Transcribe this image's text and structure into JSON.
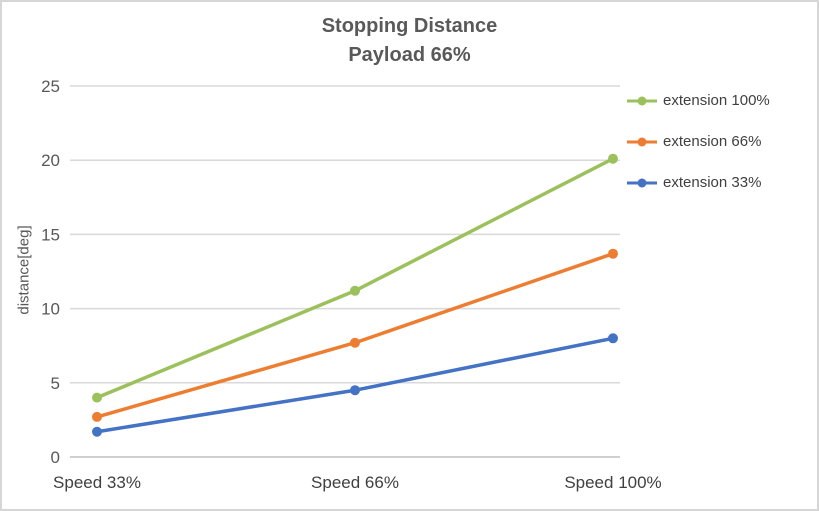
{
  "chart_data": {
    "type": "line",
    "title": "Stopping Distance",
    "subtitle": "Payload 66%",
    "ylabel": "distance[deg]",
    "xlabel": "",
    "categories": [
      "Speed 33%",
      "Speed 66%",
      "Speed 100%"
    ],
    "series": [
      {
        "name": "extension 100%",
        "color": "#9CC15C",
        "values": [
          4.0,
          11.2,
          20.1
        ]
      },
      {
        "name": "extension 66%",
        "color": "#ED7D31",
        "values": [
          2.7,
          7.7,
          13.7
        ]
      },
      {
        "name": "extension 33%",
        "color": "#4472C4",
        "values": [
          1.7,
          4.5,
          8.0
        ]
      }
    ],
    "ylim": [
      0,
      25
    ],
    "yticks": [
      0,
      5,
      10,
      15,
      20,
      25
    ],
    "grid": true,
    "legend_position": "right",
    "colors": {
      "gridline": "#d9d9d9",
      "axis_line": "#bfbfbf",
      "title_text": "#595959",
      "tick_text": "#595959",
      "category_text": "#404040"
    }
  }
}
